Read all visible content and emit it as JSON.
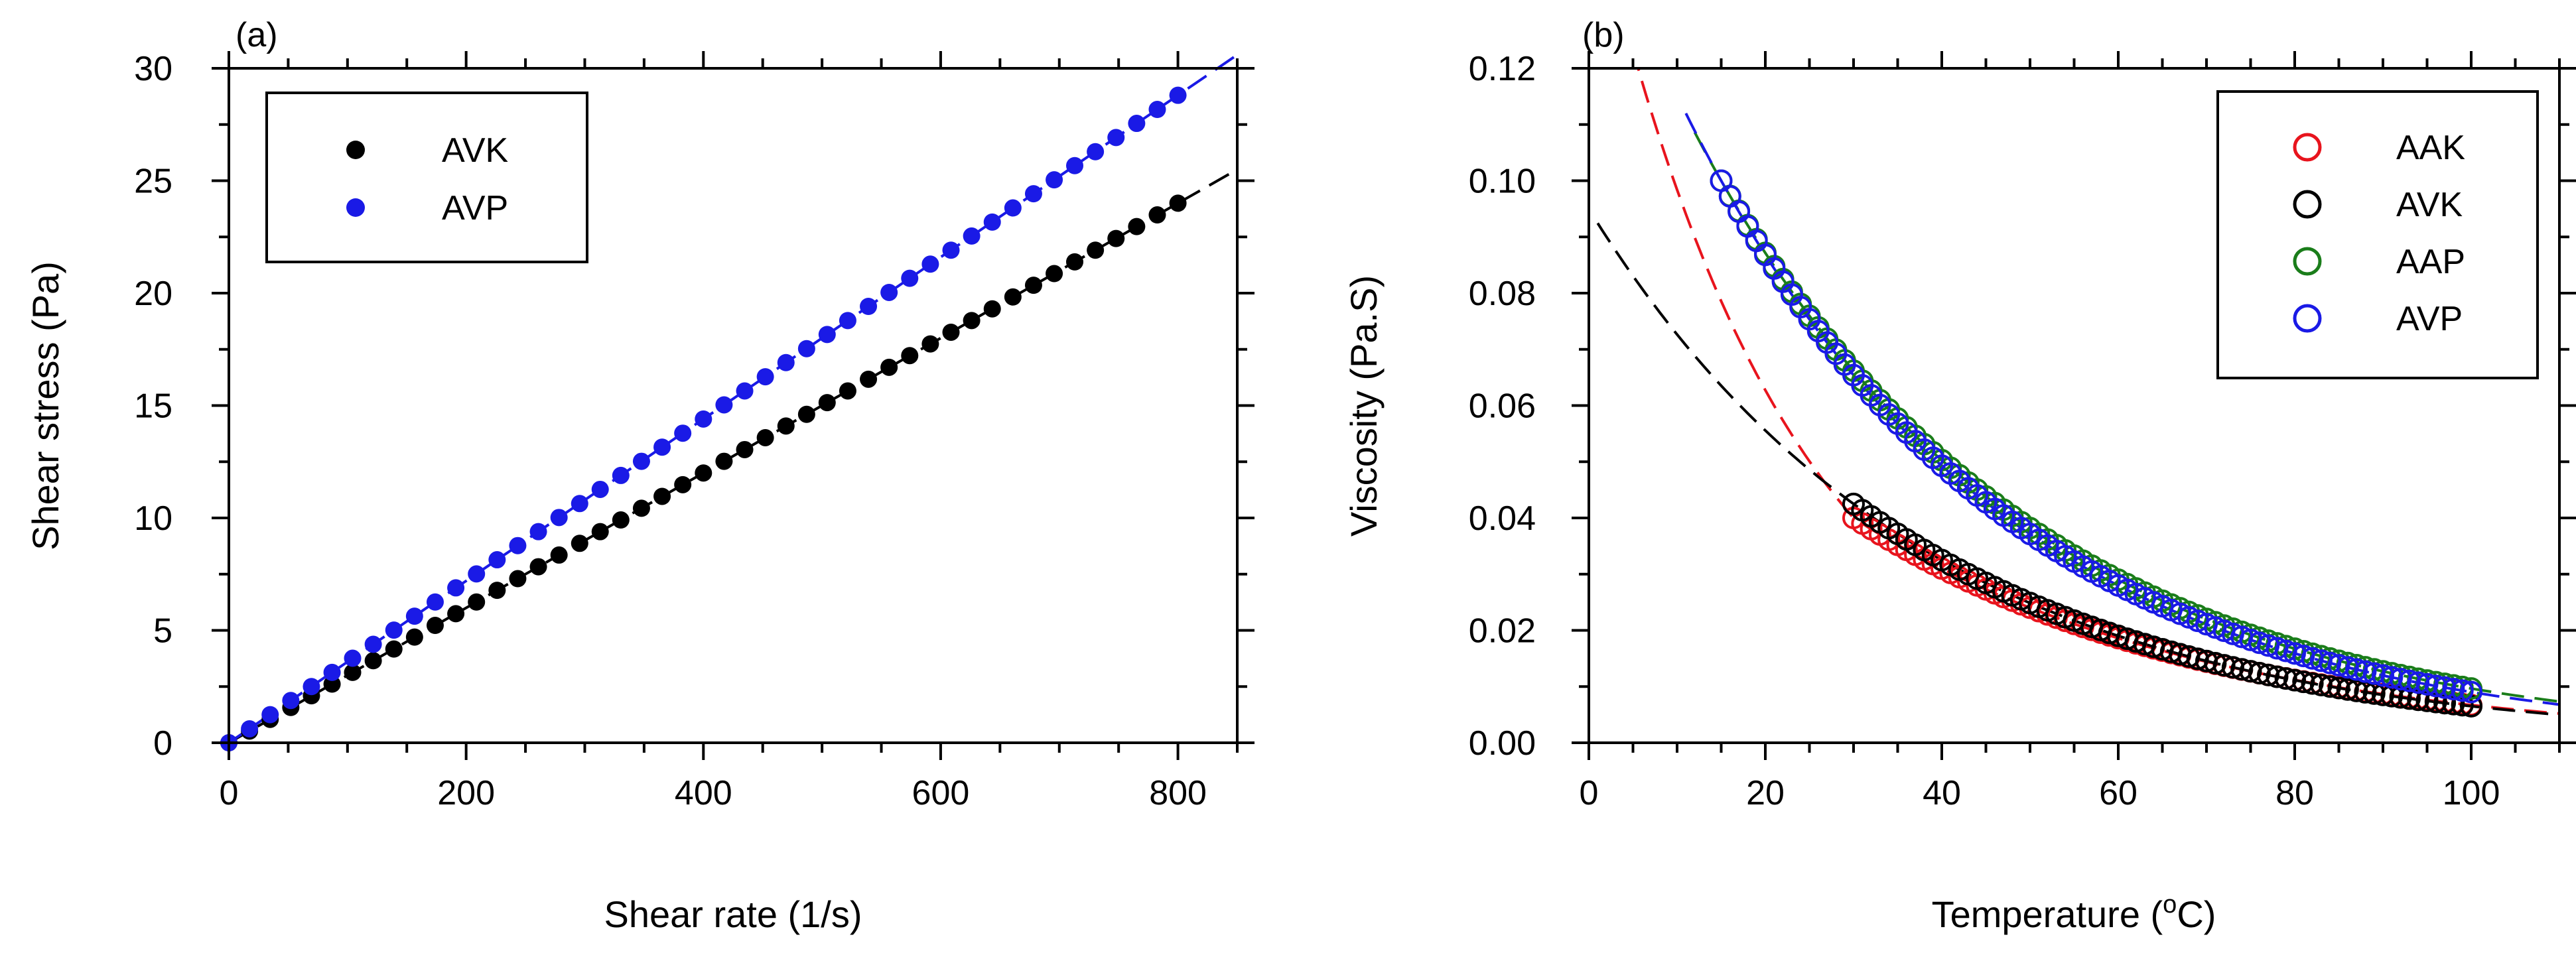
{
  "chart_data": [
    {
      "panel": "(a)",
      "type": "scatter",
      "title": "",
      "xlabel": "Shear rate (1/s)",
      "ylabel": "Shear stress (Pa)",
      "xlim": [
        0,
        850
      ],
      "ylim": [
        0,
        30
      ],
      "xticks": [
        0,
        200,
        400,
        600,
        800
      ],
      "yticks": [
        0,
        5,
        10,
        15,
        20,
        25,
        30
      ],
      "xtick_labels": [
        "0",
        "200",
        "400",
        "600",
        "800"
      ],
      "ytick_labels": [
        "0",
        "5",
        "10",
        "15",
        "20",
        "25",
        "30"
      ],
      "grid": false,
      "legend_position": "top-left",
      "series": [
        {
          "name": "AVK",
          "color": "#000000",
          "marker": "filled-circle",
          "x": [
            0,
            17.4,
            34.8,
            52.2,
            69.6,
            87,
            104.3,
            121.7,
            139.1,
            156.5,
            173.9,
            191.3,
            208.7,
            226.1,
            243.5,
            260.9,
            278.3,
            295.7,
            313,
            330.4,
            347.8,
            365.2,
            382.6,
            400,
            417.4,
            434.8,
            452.2,
            469.6,
            487,
            504.3,
            521.7,
            539.1,
            556.5,
            573.9,
            591.3,
            608.7,
            626.1,
            643.5,
            660.9,
            678.3,
            695.7,
            713,
            730.4,
            747.8,
            765.2,
            782.6,
            800
          ],
          "y": [
            0,
            0.52,
            1.04,
            1.57,
            2.09,
            2.61,
            3.13,
            3.65,
            4.17,
            4.7,
            5.22,
            5.74,
            6.26,
            6.78,
            7.3,
            7.83,
            8.35,
            8.87,
            9.39,
            9.91,
            10.43,
            10.96,
            11.48,
            12,
            12.52,
            13.04,
            13.57,
            14.09,
            14.61,
            15.13,
            15.65,
            16.17,
            16.7,
            17.22,
            17.74,
            18.26,
            18.78,
            19.3,
            19.83,
            20.35,
            20.87,
            21.39,
            21.91,
            22.43,
            22.96,
            23.48,
            24
          ]
        },
        {
          "name": "AVP",
          "color": "#1a1ae6",
          "marker": "filled-circle",
          "x": [
            0,
            17.4,
            34.8,
            52.2,
            69.6,
            87,
            104.3,
            121.7,
            139.1,
            156.5,
            173.9,
            191.3,
            208.7,
            226.1,
            243.5,
            260.9,
            278.3,
            295.7,
            313,
            330.4,
            347.8,
            365.2,
            382.6,
            400,
            417.4,
            434.8,
            452.2,
            469.6,
            487,
            504.3,
            521.7,
            539.1,
            556.5,
            573.9,
            591.3,
            608.7,
            626.1,
            643.5,
            660.9,
            678.3,
            695.7,
            713,
            730.4,
            747.8,
            765.2,
            782.6,
            800
          ],
          "y": [
            0,
            0.62,
            1.25,
            1.88,
            2.5,
            3.13,
            3.76,
            4.38,
            5.01,
            5.63,
            6.26,
            6.89,
            7.51,
            8.14,
            8.77,
            9.39,
            10.02,
            10.64,
            11.27,
            11.89,
            12.52,
            13.15,
            13.77,
            14.4,
            15.03,
            15.65,
            16.28,
            16.91,
            17.53,
            18.16,
            18.78,
            19.41,
            20.03,
            20.66,
            21.29,
            21.91,
            22.54,
            23.16,
            23.79,
            24.42,
            25.04,
            25.67,
            26.29,
            26.92,
            27.55,
            28.17,
            28.8
          ]
        }
      ],
      "fits": [
        {
          "series": "AVK",
          "style": "dashed",
          "color": "#000000",
          "slope": 0.03,
          "x_range": [
            0,
            850
          ]
        },
        {
          "series": "AVP",
          "style": "dashed",
          "color": "#1a1ae6",
          "slope": 0.036,
          "x_range": [
            0,
            850
          ]
        }
      ]
    },
    {
      "panel": "(b)",
      "type": "scatter",
      "title": "",
      "xlabel_main": "Temperature (",
      "xlabel_sup": "o",
      "xlabel_end": "C)",
      "ylabel": "Viscosity (Pa.S)",
      "xlim": [
        0,
        110
      ],
      "ylim": [
        0,
        0.12
      ],
      "xticks": [
        0,
        20,
        40,
        60,
        80,
        100
      ],
      "yticks": [
        0,
        0.02,
        0.04,
        0.06,
        0.08,
        0.1,
        0.12
      ],
      "xtick_labels": [
        "0",
        "20",
        "40",
        "60",
        "80",
        "100"
      ],
      "ytick_labels": [
        "0.00",
        "0.02",
        "0.04",
        "0.06",
        "0.08",
        "0.10",
        "0.12"
      ],
      "grid": false,
      "legend_position": "top-right",
      "series": [
        {
          "name": "AAK",
          "color": "#e8141d",
          "marker": "open-circle",
          "temp_range": [
            30,
            100
          ],
          "model": "exp",
          "a": 0.04,
          "b": 0.0255,
          "x0": 30
        },
        {
          "name": "AVK",
          "color": "#000000",
          "marker": "open-circle",
          "temp_range": [
            30,
            100
          ],
          "model": "exp",
          "a": 0.0425,
          "b": 0.0268,
          "x0": 30
        },
        {
          "name": "AAP",
          "color": "#1a7d1a",
          "marker": "open-circle",
          "temp_range": [
            15,
            100
          ],
          "model": "exp",
          "a": 0.1,
          "b": 0.0275,
          "x0": 15
        },
        {
          "name": "AVP",
          "color": "#1a1ae6",
          "marker": "open-circle",
          "temp_range": [
            15,
            100
          ],
          "model": "exp",
          "a": 0.1,
          "b": 0.0283,
          "x0": 15
        }
      ],
      "fits": [
        {
          "series": "AAK",
          "style": "dashed",
          "color": "#e8141d",
          "x_range": [
            3,
            110
          ]
        },
        {
          "series": "AVK",
          "style": "dashed",
          "color": "#000000",
          "x_range": [
            1,
            110
          ]
        },
        {
          "series": "AAP",
          "style": "dashed",
          "color": "#1a7d1a",
          "x_range": [
            12,
            110
          ]
        },
        {
          "series": "AVP",
          "style": "dashed",
          "color": "#1a1ae6",
          "x_range": [
            11,
            110
          ]
        }
      ]
    }
  ]
}
